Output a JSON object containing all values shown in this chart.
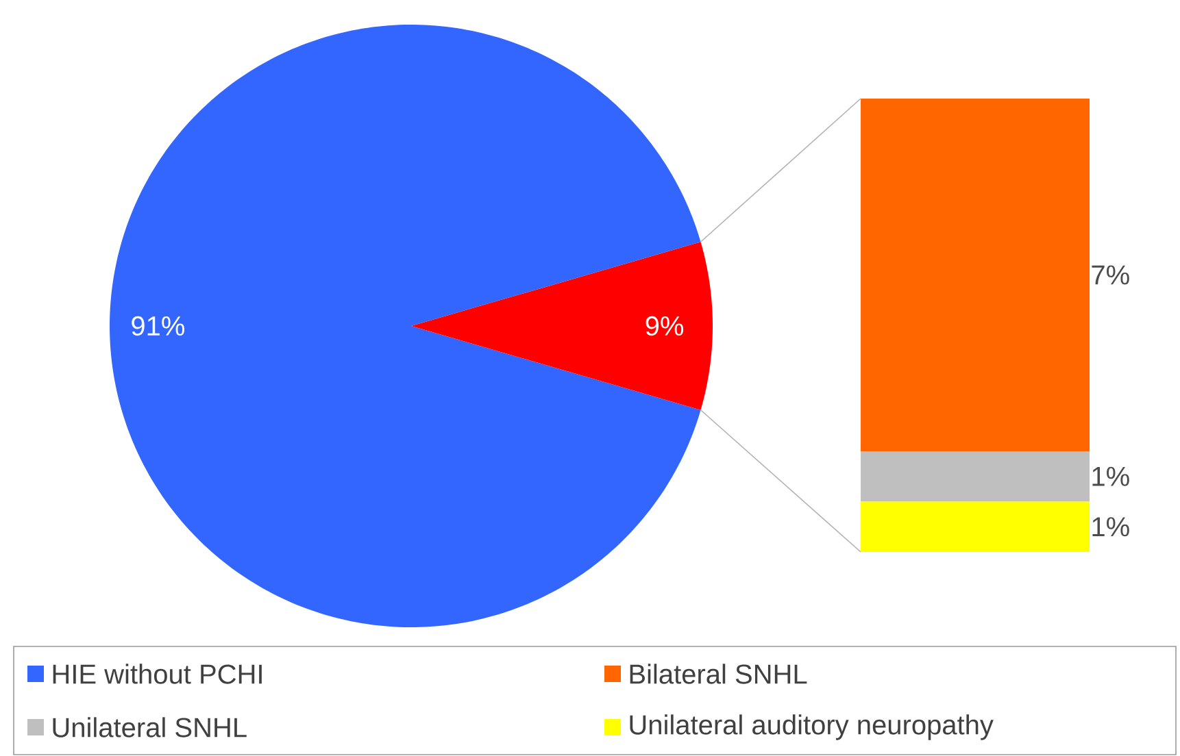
{
  "chart_data": [
    {
      "type": "pie",
      "categories": [
        "HIE without PCHI",
        null
      ],
      "values": [
        91,
        9
      ],
      "colors": [
        "#3366ff",
        "#ff0000"
      ],
      "value_labels": [
        "91%",
        "9%"
      ],
      "legend": "bottom"
    },
    {
      "type": "bar",
      "stacked": true,
      "categories": [
        null
      ],
      "legend": "bottom",
      "series": [
        {
          "name": "Unilateral auditory neuropathy",
          "color": "#ffff00",
          "values": [
            1
          ],
          "value_labels": [
            "1%"
          ]
        },
        {
          "name": "Unilateral SNHL",
          "color": "#bfbfbf",
          "values": [
            1
          ],
          "value_labels": [
            "1%"
          ]
        },
        {
          "name": "Bilateral SNHL",
          "color": "#ff6600",
          "values": [
            7
          ],
          "value_labels": [
            "7%"
          ]
        }
      ]
    }
  ]
}
